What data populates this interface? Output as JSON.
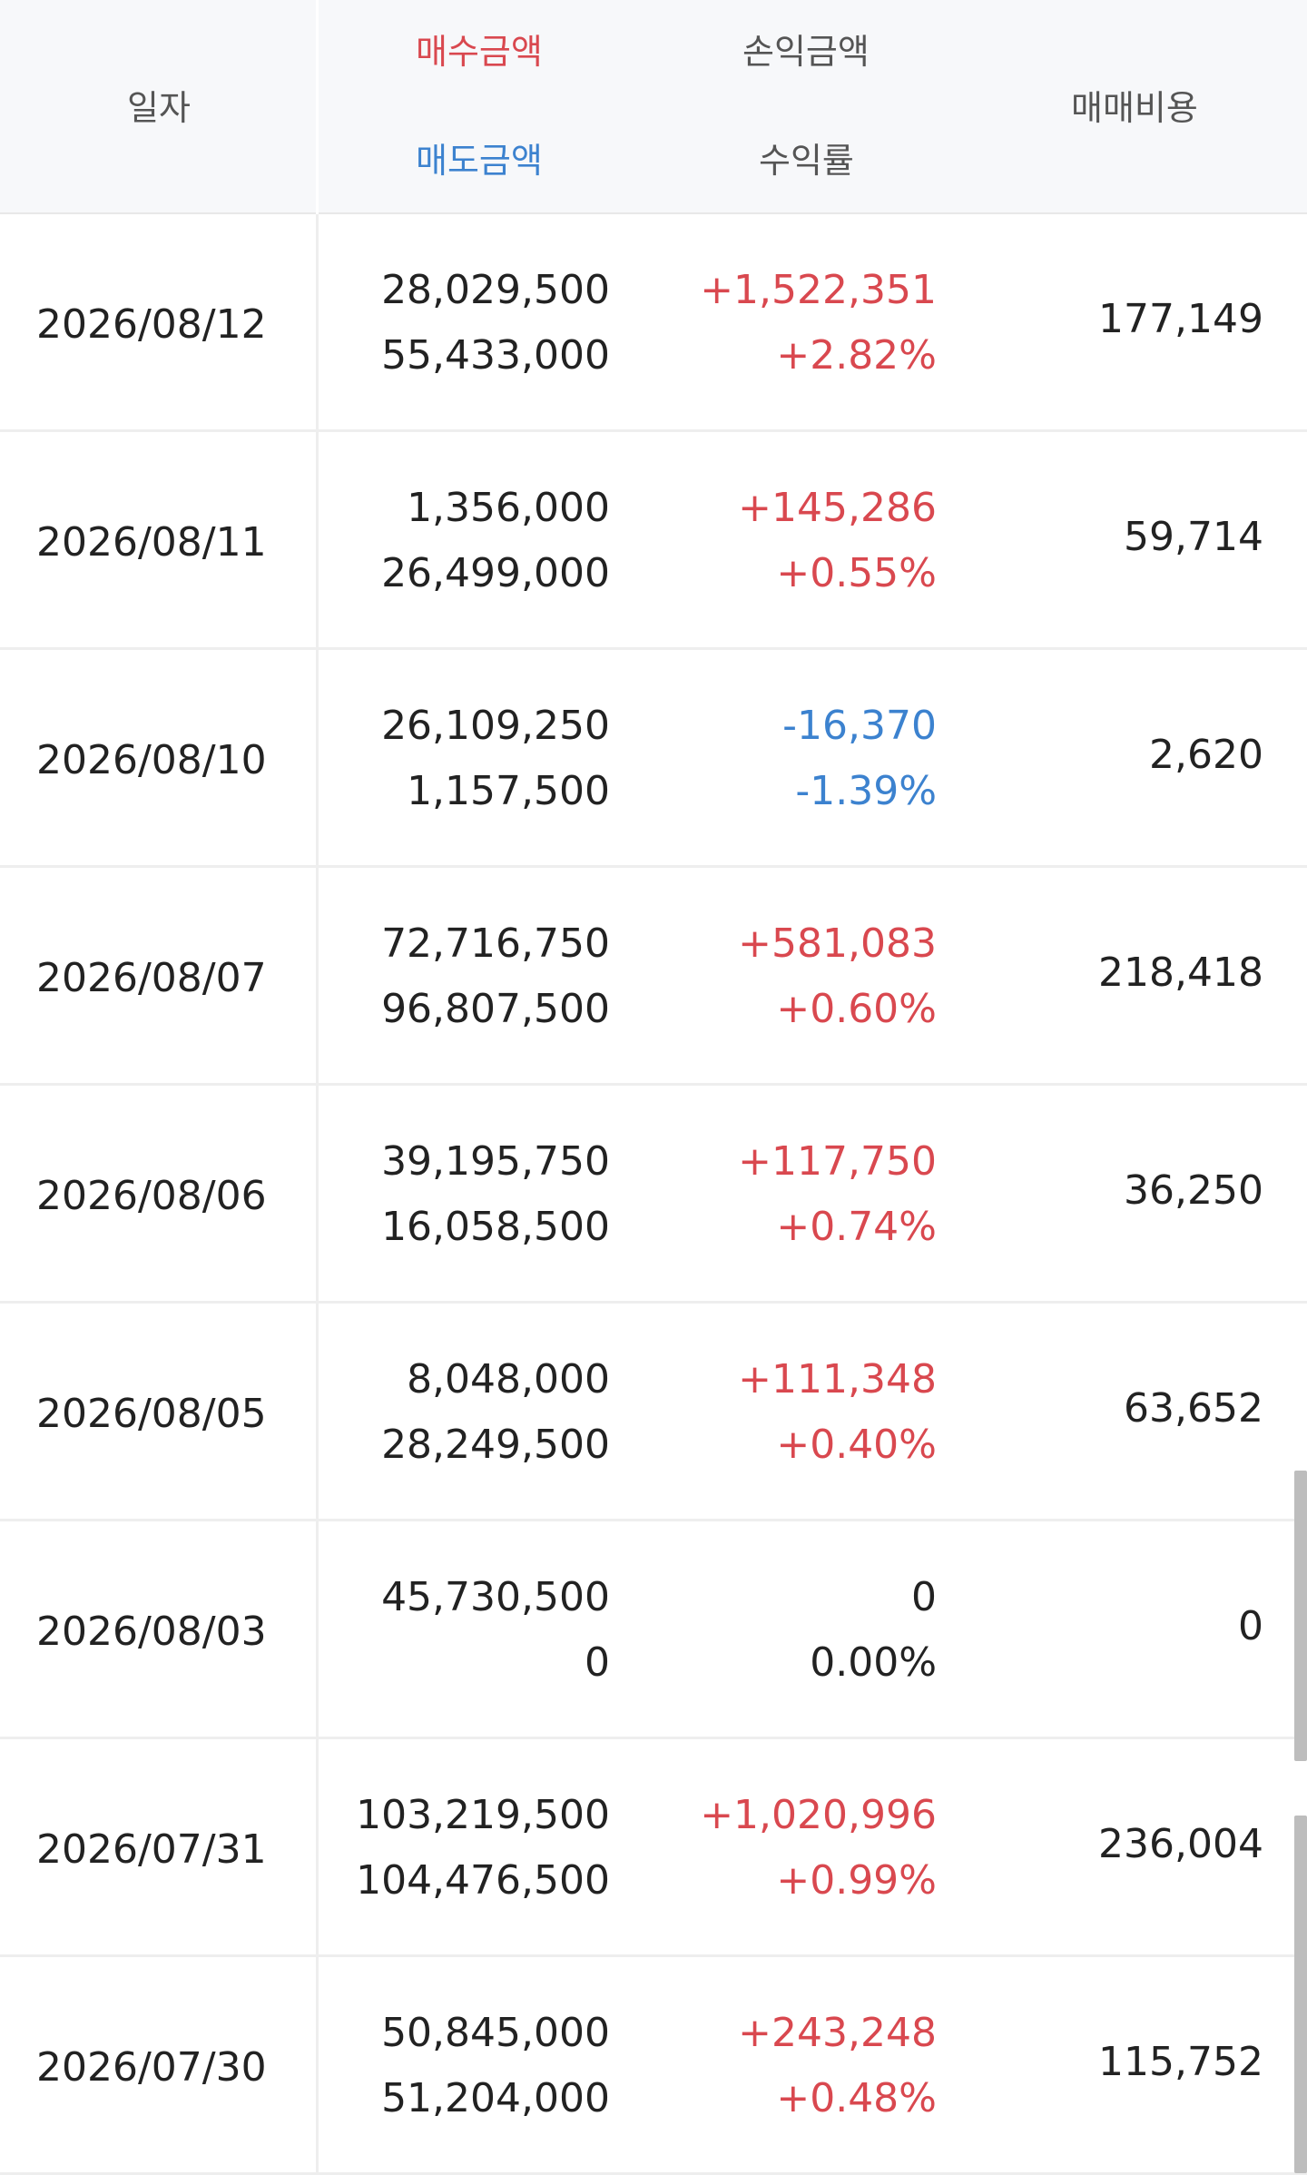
{
  "header": {
    "date": "일자",
    "buy_amount": "매수금액",
    "sell_amount": "매도금액",
    "pl_amount": "손익금액",
    "return_rate": "수익률",
    "fee": "매매비용"
  },
  "rows": [
    {
      "date": "2026/08/12",
      "buy": "28,029,500",
      "sell": "55,433,000",
      "pl": "+1,522,351",
      "rate": "+2.82%",
      "fee": "177,149",
      "sign": "pos"
    },
    {
      "date": "2026/08/11",
      "buy": "1,356,000",
      "sell": "26,499,000",
      "pl": "+145,286",
      "rate": "+0.55%",
      "fee": "59,714",
      "sign": "pos"
    },
    {
      "date": "2026/08/10",
      "buy": "26,109,250",
      "sell": "1,157,500",
      "pl": "-16,370",
      "rate": "-1.39%",
      "fee": "2,620",
      "sign": "neg"
    },
    {
      "date": "2026/08/07",
      "buy": "72,716,750",
      "sell": "96,807,500",
      "pl": "+581,083",
      "rate": "+0.60%",
      "fee": "218,418",
      "sign": "pos"
    },
    {
      "date": "2026/08/06",
      "buy": "39,195,750",
      "sell": "16,058,500",
      "pl": "+117,750",
      "rate": "+0.74%",
      "fee": "36,250",
      "sign": "pos"
    },
    {
      "date": "2026/08/05",
      "buy": "8,048,000",
      "sell": "28,249,500",
      "pl": "+111,348",
      "rate": "+0.40%",
      "fee": "63,652",
      "sign": "pos"
    },
    {
      "date": "2026/08/03",
      "buy": "45,730,500",
      "sell": "0",
      "pl": "0",
      "rate": "0.00%",
      "fee": "0",
      "sign": "zero"
    },
    {
      "date": "2026/07/31",
      "buy": "103,219,500",
      "sell": "104,476,500",
      "pl": "+1,020,996",
      "rate": "+0.99%",
      "fee": "236,004",
      "sign": "pos"
    },
    {
      "date": "2026/07/30",
      "buy": "50,845,000",
      "sell": "51,204,000",
      "pl": "+243,248",
      "rate": "+0.48%",
      "fee": "115,752",
      "sign": "pos"
    }
  ],
  "colors": {
    "positive": "#d9484f",
    "negative": "#3c82cf",
    "header_bg": "#f7f8fa",
    "divider": "#eeeeee"
  }
}
